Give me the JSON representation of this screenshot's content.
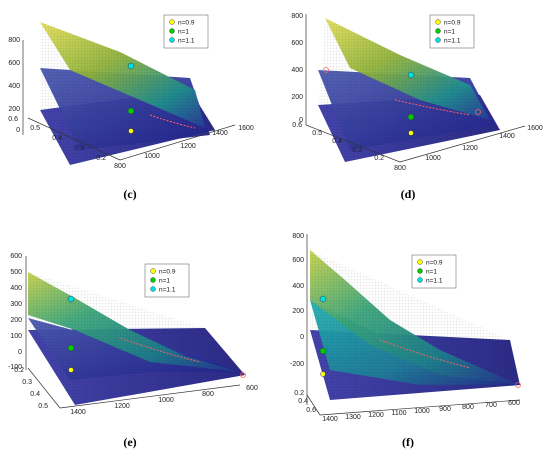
{
  "colors": {
    "surface_low": "#2a2a9a",
    "surface_mid": "#1f8f8f",
    "surface_high": "#d8d840",
    "marker_n09": "#ffff00",
    "marker_n1": "#00cc00",
    "marker_n11": "#00e0e0",
    "optimum_marker": "#ff6060"
  },
  "chart_data": [
    {
      "type": "surface",
      "caption": "(c)",
      "z_ticks": [
        "800",
        "600",
        "400",
        "200",
        "0"
      ],
      "x_ticks": [
        "800",
        "1000",
        "1200",
        "1400",
        "1600"
      ],
      "y_ticks": [
        "0.6",
        "0.5",
        "0.4",
        "0.3",
        "0.2"
      ],
      "legend": [
        "n=0.9",
        "n=1",
        "n=1.1"
      ],
      "zlim": [
        0,
        800
      ],
      "xlim": [
        800,
        1600
      ],
      "ylim": [
        0.2,
        0.6
      ],
      "legend_position": "top-right"
    },
    {
      "type": "surface",
      "caption": "(d)",
      "z_ticks": [
        "800",
        "600",
        "400",
        "200",
        "0"
      ],
      "x_ticks": [
        "800",
        "1000",
        "1200",
        "1400",
        "1600"
      ],
      "y_ticks": [
        "0.6",
        "0.5",
        "0.4",
        "0.3",
        "0.2"
      ],
      "legend": [
        "n=0.9",
        "n=1",
        "n=1.1"
      ],
      "zlim": [
        0,
        800
      ],
      "xlim": [
        800,
        1600
      ],
      "ylim": [
        0.2,
        0.6
      ],
      "legend_position": "top-right"
    },
    {
      "type": "surface",
      "caption": "(e)",
      "z_ticks": [
        "600",
        "500",
        "400",
        "300",
        "200",
        "100",
        "0",
        "-100"
      ],
      "x_ticks": [
        "1400",
        "1200",
        "1000",
        "800",
        "600"
      ],
      "y_ticks": [
        "0.2",
        "0.3",
        "0.4",
        "0.5"
      ],
      "legend": [
        "n=0.9",
        "n=1",
        "n=1.1"
      ],
      "zlim": [
        -100,
        600
      ],
      "xlim": [
        600,
        1400
      ],
      "ylim": [
        0.2,
        0.5
      ],
      "legend_position": "top-right"
    },
    {
      "type": "surface",
      "caption": "(f)",
      "z_ticks": [
        "800",
        "600",
        "400",
        "200",
        "0",
        "-200"
      ],
      "x_ticks": [
        "1400",
        "1300",
        "1200",
        "1100",
        "1000",
        "900",
        "800",
        "700",
        "600"
      ],
      "y_ticks": [
        "0.2",
        "0.4",
        "0.6"
      ],
      "legend": [
        "n=0.9",
        "n=1",
        "n=1.1"
      ],
      "zlim": [
        -200,
        800
      ],
      "xlim": [
        600,
        1400
      ],
      "ylim": [
        0.2,
        0.6
      ],
      "legend_position": "top-right"
    }
  ]
}
